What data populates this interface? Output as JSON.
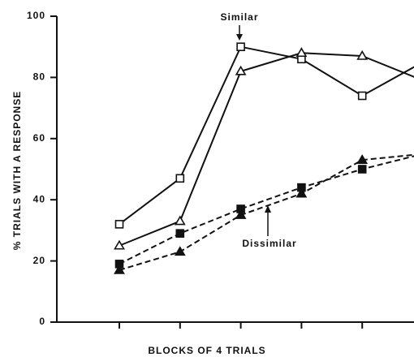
{
  "chart_data": {
    "type": "line",
    "y_label": "% TRIALS WITH A RESPONSE",
    "x_label": "BLOCKS OF 4 TRIALS",
    "categories": [
      null,
      null,
      null,
      null,
      null,
      null
    ],
    "ylim": [
      0,
      100
    ],
    "yticks": [
      0,
      20,
      40,
      60,
      80,
      100
    ],
    "color": "#111111",
    "series": [
      {
        "marker": "square",
        "filled": false,
        "dashed": false,
        "values": [
          32,
          47,
          90,
          86,
          74,
          85
        ]
      },
      {
        "marker": "triangle",
        "filled": false,
        "dashed": false,
        "values": [
          25,
          33,
          82,
          88,
          87,
          79
        ]
      },
      {
        "marker": "square",
        "filled": true,
        "dashed": true,
        "values": [
          19,
          29,
          37,
          44,
          50,
          55
        ]
      },
      {
        "marker": "triangle",
        "filled": true,
        "dashed": true,
        "values": [
          17,
          23,
          35,
          42,
          53,
          55
        ]
      }
    ],
    "annotations": [
      {
        "text": "Similar",
        "target": 2
      },
      {
        "text": "Dissimilar",
        "target": 3
      }
    ]
  }
}
